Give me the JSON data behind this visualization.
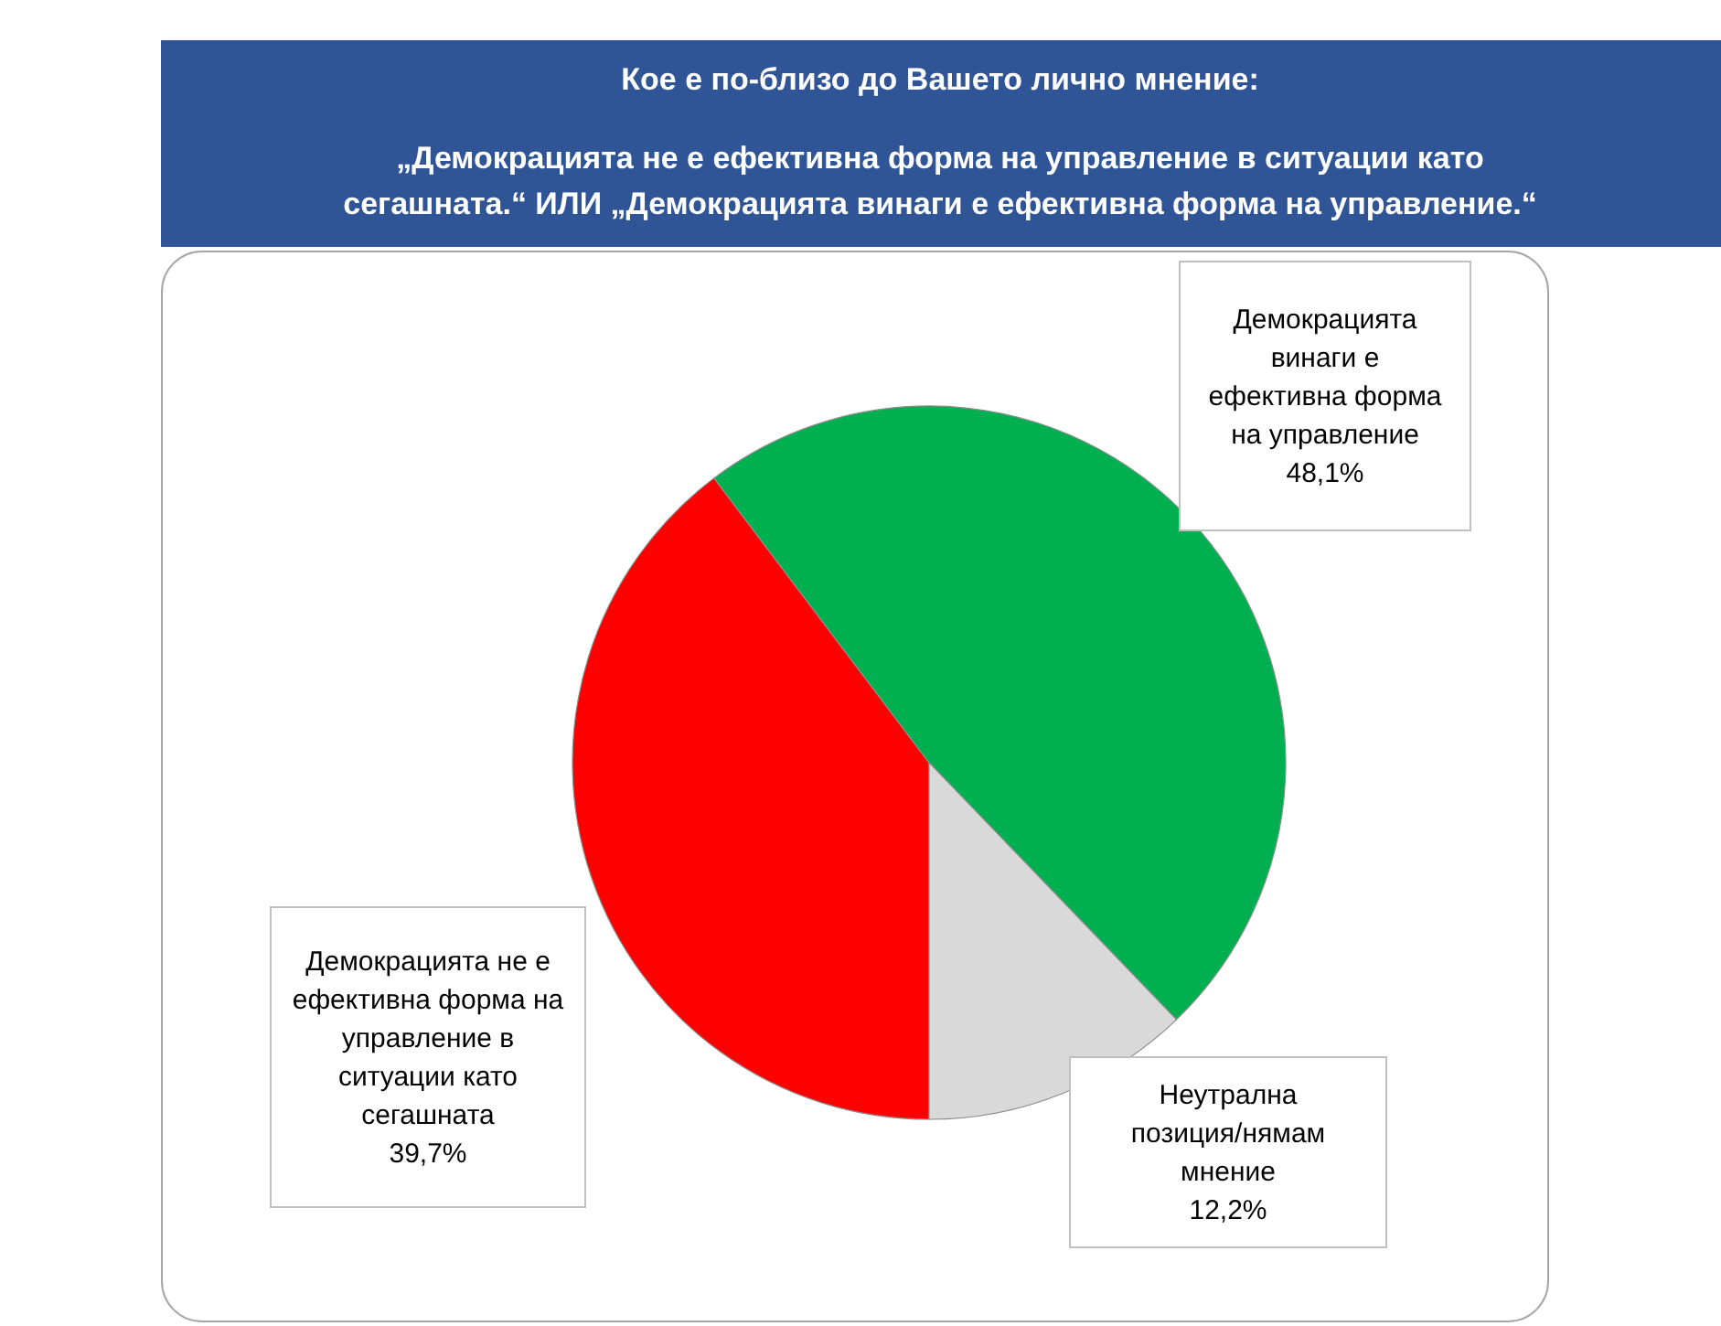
{
  "chart_data": {
    "type": "pie",
    "title": "Кое е по-близо до Вашето лично мнение:",
    "subtitle": "„Демокрацията не е ефективна форма на управление в ситуации като сегашната.“ ИЛИ „Демокрацията винаги е ефективна форма на управление.“",
    "categories": [
      "Демокрацията не е ефективна форма на управление в ситуации като сегашната",
      "Демокрацията винаги е ефективна форма на управление",
      "Неутрална позиция/нямам мнение"
    ],
    "values": [
      39.7,
      48.1,
      12.2
    ],
    "colors": [
      "#ff0000",
      "#00b050",
      "#d9d9d9"
    ],
    "value_labels": [
      "39,7%",
      "48,1%",
      "12,2%"
    ]
  }
}
